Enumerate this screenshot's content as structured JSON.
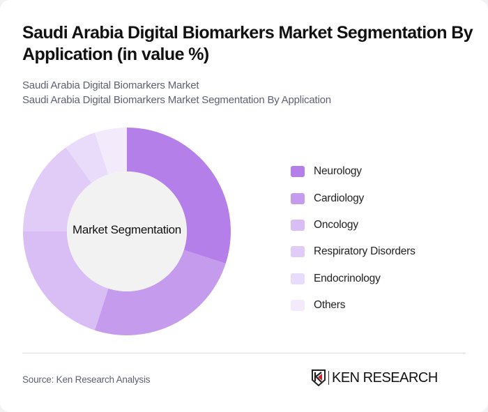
{
  "header": {
    "title": "Saudi Arabia Digital Biomarkers Market Segmentation By Application (in value %)",
    "subtitle_1": "Saudi Arabia Digital Biomarkers Market",
    "subtitle_2": "Saudi Arabia Digital Biomarkers Market Segmentation By Application"
  },
  "chart": {
    "center_label": "Market Segmentation"
  },
  "legend": [
    {
      "label": "Neurology",
      "color": "#b57fea"
    },
    {
      "label": "Cardiology",
      "color": "#c59bee"
    },
    {
      "label": "Oncology",
      "color": "#d9bdf5"
    },
    {
      "label": "Respiratory Disorders",
      "color": "#e0ccf6"
    },
    {
      "label": "Endocrinology",
      "color": "#e9dbfa"
    },
    {
      "label": "Others",
      "color": "#f3ebfc"
    }
  ],
  "footer": {
    "source": "Source: Ken Research Analysis",
    "logo_text": "KEN RESEARCH",
    "logo_accent": "#d0202a"
  },
  "chart_data": {
    "type": "pie",
    "title": "Saudi Arabia Digital Biomarkers Market Segmentation By Application (in value %)",
    "subtitle": "Saudi Arabia Digital Biomarkers Market Segmentation By Application",
    "center_label": "Market Segmentation",
    "categories": [
      "Neurology",
      "Cardiology",
      "Oncology",
      "Respiratory Disorders",
      "Endocrinology",
      "Others"
    ],
    "values": [
      30,
      25,
      20,
      15,
      5,
      5
    ],
    "colors": [
      "#b57fea",
      "#c59bee",
      "#d9bdf5",
      "#e0ccf6",
      "#e9dbfa",
      "#f3ebfc"
    ],
    "donut": true,
    "legend_position": "right"
  }
}
